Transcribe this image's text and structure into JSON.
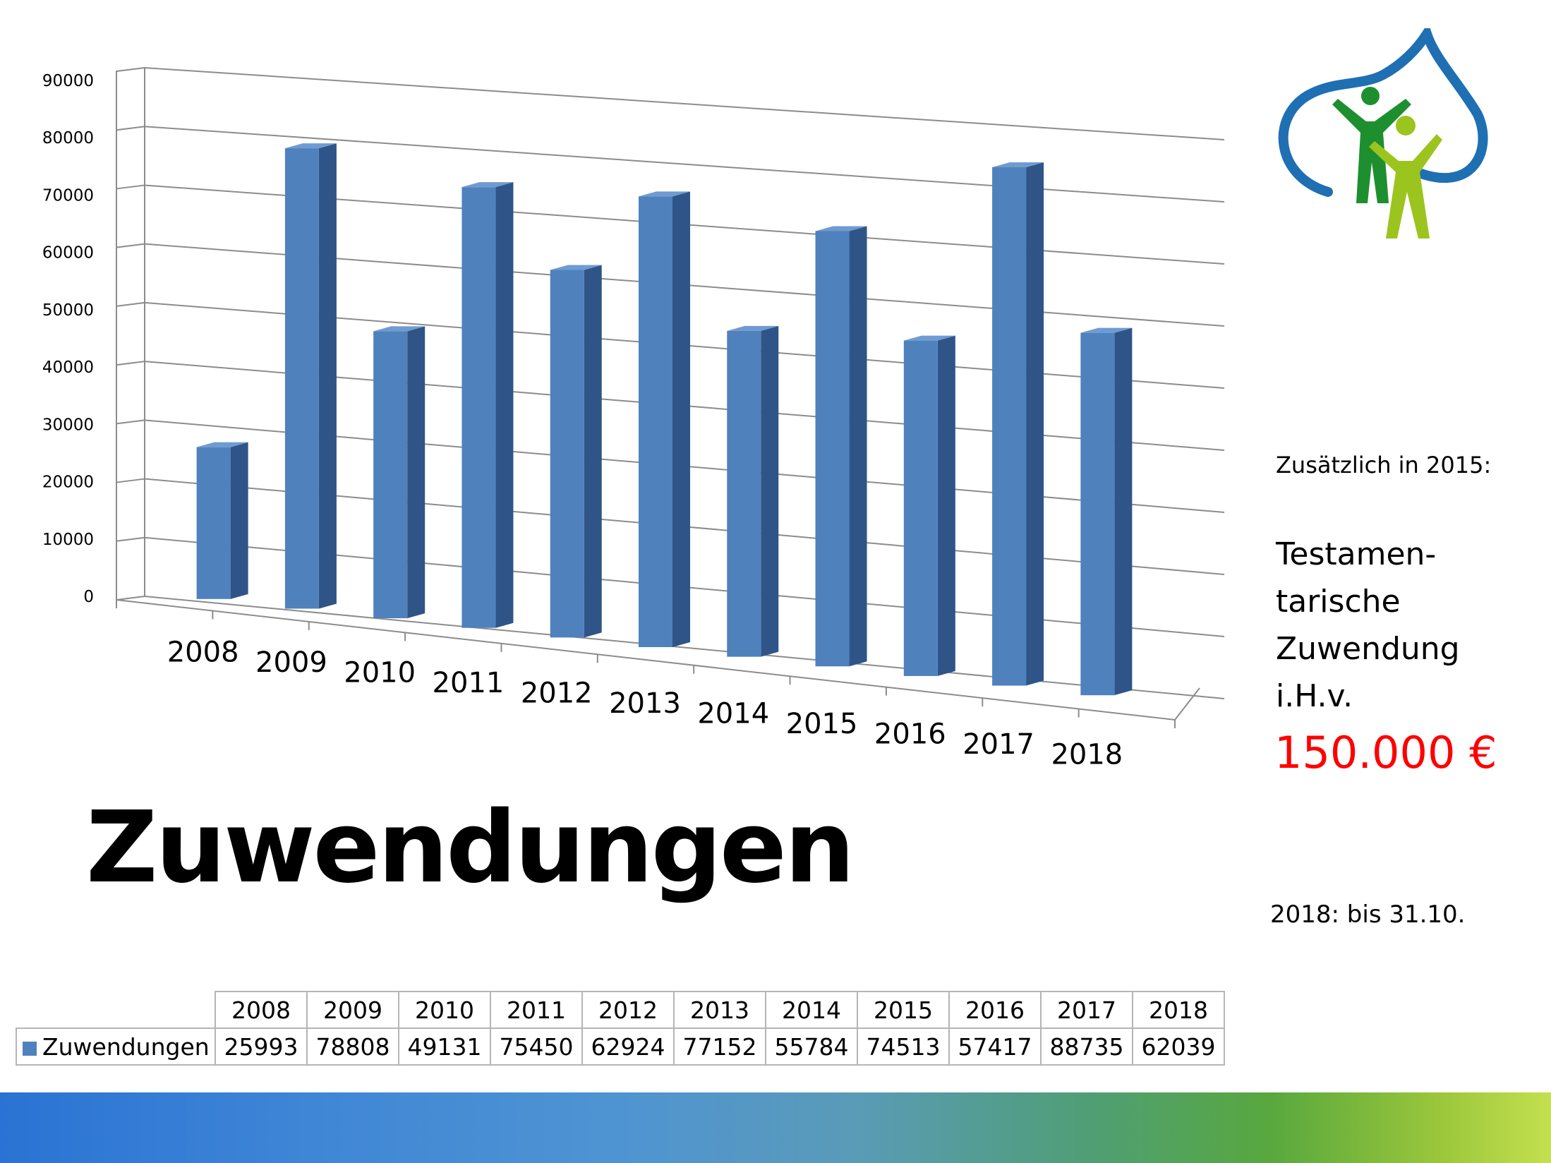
{
  "chart_data": {
    "type": "bar",
    "categories": [
      "2008",
      "2009",
      "2010",
      "2011",
      "2012",
      "2013",
      "2014",
      "2015",
      "2016",
      "2017",
      "2018"
    ],
    "series": [
      {
        "name": "Zuwendungen",
        "values": [
          25993,
          78808,
          49131,
          75450,
          62924,
          77152,
          55784,
          74513,
          57417,
          88735,
          62039
        ]
      }
    ],
    "y_ticks": [
      "0",
      "10000",
      "20000",
      "30000",
      "40000",
      "50000",
      "60000",
      "70000",
      "80000",
      "90000"
    ],
    "ylim": [
      0,
      90000
    ],
    "grid": true,
    "legend": "table below chart",
    "bar_color": "#4f81bd"
  },
  "note": {
    "intro": "Zusätzlich in 2015:",
    "lines": [
      "Testamen-",
      "tarische",
      "Zuwendung",
      "i.H.v."
    ],
    "amount": "150.000 €",
    "amount_color": "#ff0000"
  },
  "title": "Zuwendungen",
  "footnote": "2018: bis 31.10.",
  "table": {
    "row_label": "Zuwendungen",
    "headers": [
      "2008",
      "2009",
      "2010",
      "2011",
      "2012",
      "2013",
      "2014",
      "2015",
      "2016",
      "2017",
      "2018"
    ],
    "values": [
      "25993",
      "78808",
      "49131",
      "75450",
      "62924",
      "77152",
      "55784",
      "74513",
      "57417",
      "88735",
      "62039"
    ]
  },
  "logo": {
    "icon": "leaf-family-logo-icon",
    "colors": {
      "outline": "#1f6fb3",
      "figure_dark": "#1e8f2f",
      "figure_light": "#9cc41f"
    }
  },
  "footer_gradient": [
    "#2a73d4",
    "#4f94d2",
    "#4f9e76",
    "#c3e04f"
  ]
}
